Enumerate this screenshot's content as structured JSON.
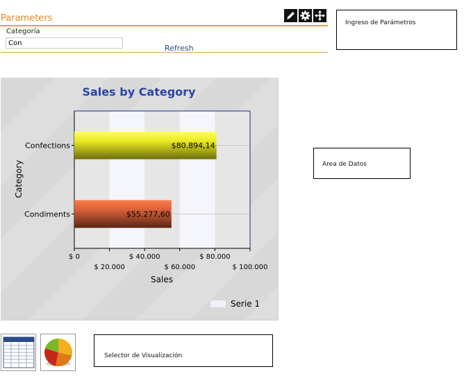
{
  "parameters": {
    "title": "Parameters",
    "field_label": "Categoría",
    "field_value": "Con",
    "refresh_label": "Refresh"
  },
  "toolbar": {
    "icons": [
      "pencil-icon",
      "gear-icon",
      "move-icon"
    ]
  },
  "notes": {
    "parameters_entry": "Ingreso de Parámetros",
    "data_area": "Area de Datos",
    "visualization_selector": "Selector de Visualización"
  },
  "chart_data": {
    "type": "bar",
    "orientation": "horizontal",
    "title": "Sales by Category",
    "xlabel": "Sales",
    "ylabel": "Category",
    "categories": [
      "Confections",
      "Condiments"
    ],
    "series": [
      {
        "name": "Serie 1",
        "values": [
          80894.14,
          55277.6
        ]
      }
    ],
    "data_labels": [
      "$80.894,14",
      "$55.277,60"
    ],
    "xlim": [
      0,
      100000
    ],
    "x_ticks": [
      "$ 0",
      "$ 20.000",
      "$ 40.000",
      "$ 60.000",
      "$ 80.000",
      "$ 100.000"
    ],
    "bar_colors": [
      "#e8e820",
      "#e0603a"
    ],
    "title_color": "#2a44a8",
    "grid": true,
    "legend_position": "bottom-right"
  },
  "viz_selector": {
    "options": [
      "table-view-icon",
      "pie-chart-icon"
    ]
  }
}
